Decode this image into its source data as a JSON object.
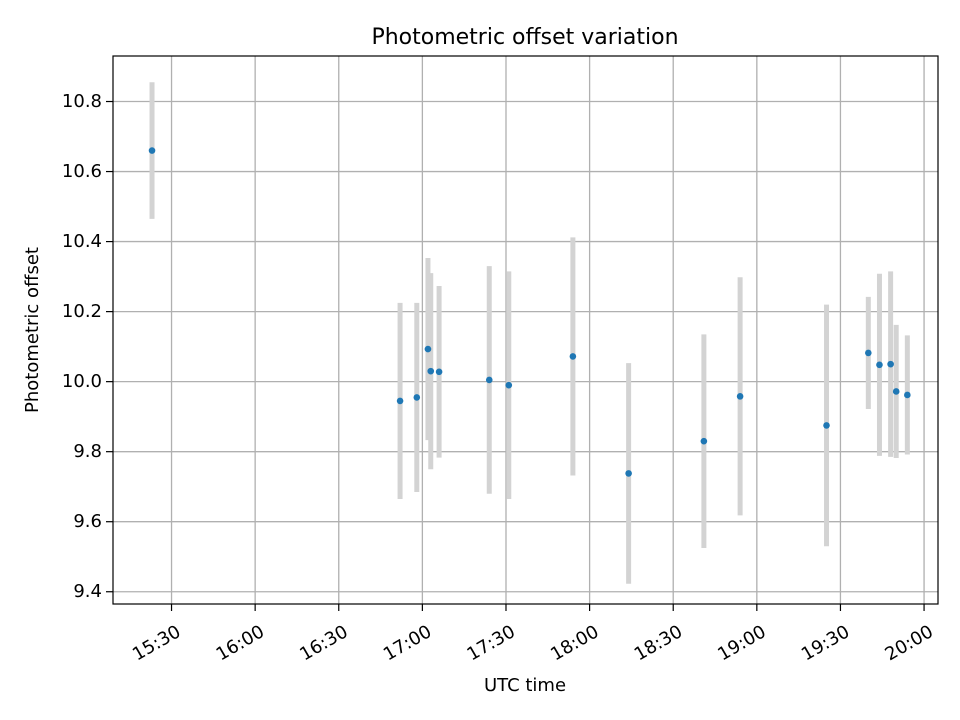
{
  "chart_data": {
    "type": "scatter",
    "title": "Photometric offset variation",
    "xlabel": "UTC time",
    "ylabel": "Photometric offset",
    "xlim": [
      "15:09",
      "20:05"
    ],
    "ylim": [
      9.365,
      10.93
    ],
    "grid": true,
    "x_ticks": [
      "15:30",
      "16:00",
      "16:30",
      "17:00",
      "17:30",
      "18:00",
      "18:30",
      "19:00",
      "19:30",
      "20:00"
    ],
    "y_ticks": [
      9.4,
      9.6,
      9.8,
      10.0,
      10.2,
      10.4,
      10.6,
      10.8
    ],
    "y_tick_labels": [
      "9.4",
      "9.6",
      "9.8",
      "10.0",
      "10.2",
      "10.4",
      "10.6",
      "10.8"
    ],
    "colors": {
      "marker": "#1f77b4",
      "errorbar": "#d3d3d3",
      "grid": "#b0b0b0"
    },
    "series": [
      {
        "points": [
          {
            "x": "15:23",
            "y": 10.66,
            "yerr": 0.195
          },
          {
            "x": "16:52",
            "y": 9.945,
            "yerr": 0.28
          },
          {
            "x": "16:58",
            "y": 9.955,
            "yerr": 0.27
          },
          {
            "x": "17:02",
            "y": 10.093,
            "yerr": 0.26
          },
          {
            "x": "17:03",
            "y": 10.03,
            "yerr": 0.28
          },
          {
            "x": "17:06",
            "y": 10.028,
            "yerr": 0.245
          },
          {
            "x": "17:24",
            "y": 10.005,
            "yerr": 0.325
          },
          {
            "x": "17:31",
            "y": 9.99,
            "yerr": 0.325
          },
          {
            "x": "17:54",
            "y": 10.072,
            "yerr": 0.34
          },
          {
            "x": "18:14",
            "y": 9.738,
            "yerr": 0.315
          },
          {
            "x": "18:41",
            "y": 9.83,
            "yerr": 0.305
          },
          {
            "x": "18:54",
            "y": 9.958,
            "yerr": 0.34
          },
          {
            "x": "19:25",
            "y": 9.875,
            "yerr": 0.345
          },
          {
            "x": "19:40",
            "y": 10.082,
            "yerr": 0.16
          },
          {
            "x": "19:44",
            "y": 10.048,
            "yerr": 0.26
          },
          {
            "x": "19:48",
            "y": 10.05,
            "yerr": 0.265
          },
          {
            "x": "19:50",
            "y": 9.972,
            "yerr": 0.19
          },
          {
            "x": "19:54",
            "y": 9.962,
            "yerr": 0.17
          }
        ]
      }
    ]
  }
}
